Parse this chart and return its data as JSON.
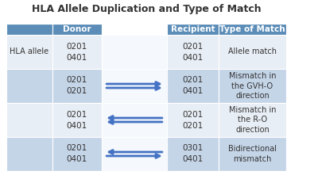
{
  "title": "HLA Allele Duplication and Type of Match",
  "title_fontsize": 9,
  "header_bg": "#5b8db8",
  "header_fg": "#ffffff",
  "row_bg_dark": "#c5d5e8",
  "row_bg_light": "#e8eef5",
  "text_color": "#333333",
  "arrow_color": "#4472c4",
  "col_header_label": [
    "Donor",
    "Recipient",
    "Type of Match"
  ],
  "row_label": "HLA allele",
  "rows": [
    {
      "donor": [
        "0201",
        "0401"
      ],
      "recipient": [
        "0201",
        "0401"
      ],
      "match": "Allele match",
      "arrow": null
    },
    {
      "donor": [
        "0201",
        "0201"
      ],
      "recipient": [
        "0201",
        "0401"
      ],
      "match": "Mismatch in\nthe GVH-O\ndirection",
      "arrow": "right"
    },
    {
      "donor": [
        "0201",
        "0401"
      ],
      "recipient": [
        "0201",
        "0201"
      ],
      "match": "Mismatch in\nthe R-O\ndirection",
      "arrow": "left"
    },
    {
      "donor": [
        "0201",
        "0401"
      ],
      "recipient": [
        "0301",
        "0401"
      ],
      "match": "Bidirectional\nmismatch",
      "arrow": "both"
    }
  ]
}
